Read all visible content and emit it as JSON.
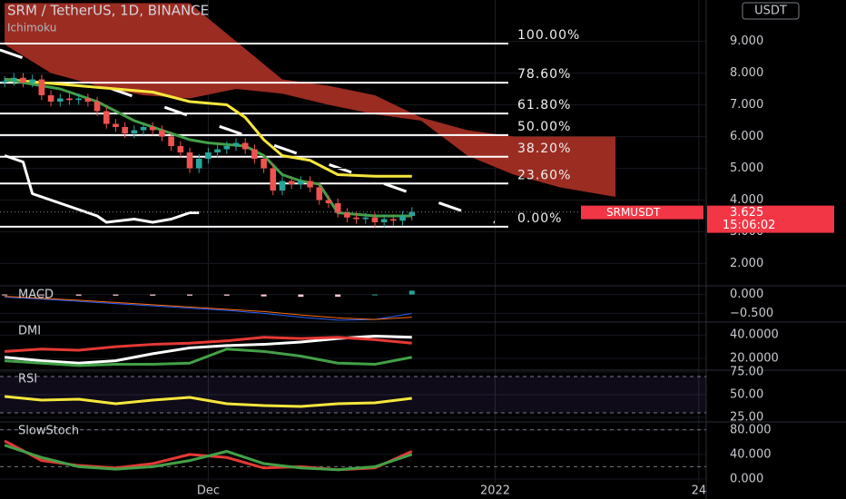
{
  "chart_data": [
    {
      "type": "candlestick",
      "title": "SRM / TetherUS, 1D, BINANCE",
      "indicator": "Ichimoku",
      "currency": "USDT",
      "symbol": "SRMUSDT",
      "countdown": "15:06:02",
      "ylim": [
        1.3,
        10.3
      ],
      "yticks": [
        {
          "value": 2,
          "label": "2.000"
        },
        {
          "value": 3,
          "label": "3.000"
        },
        {
          "value": 4,
          "label": "4.000"
        },
        {
          "value": 5,
          "label": "5.000"
        },
        {
          "value": 6,
          "label": "6.000"
        },
        {
          "value": 7,
          "label": "7.000"
        },
        {
          "value": 8,
          "label": "8.000"
        },
        {
          "value": 9,
          "label": "9.000"
        }
      ],
      "x": [
        0,
        1,
        2,
        3,
        4,
        5,
        6,
        7,
        8,
        9,
        10,
        11,
        12,
        13,
        14,
        15,
        16,
        17,
        18,
        19,
        20,
        21,
        22,
        23,
        24,
        25,
        26,
        27,
        28,
        29,
        30,
        31,
        32,
        33,
        34,
        35,
        36,
        37,
        38,
        39,
        40,
        41,
        42,
        43,
        44
      ],
      "open": [
        7.7,
        7.75,
        7.85,
        7.7,
        7.8,
        7.3,
        7.1,
        7.2,
        7.15,
        7.2,
        7.1,
        6.8,
        6.4,
        6.3,
        6.1,
        6.2,
        6.3,
        6.2,
        6.0,
        5.7,
        5.5,
        5.0,
        5.3,
        5.5,
        5.6,
        5.7,
        5.8,
        5.6,
        5.3,
        5.0,
        4.3,
        4.6,
        4.5,
        4.6,
        4.4,
        4.0,
        3.9,
        3.6,
        3.45,
        3.4,
        3.45,
        3.3,
        3.4,
        3.35,
        3.5
      ],
      "high": [
        7.9,
        8.0,
        8.0,
        7.95,
        7.95,
        7.45,
        7.35,
        7.35,
        7.35,
        7.35,
        7.25,
        6.95,
        6.55,
        6.45,
        6.35,
        6.45,
        6.45,
        6.35,
        6.15,
        5.85,
        5.65,
        5.45,
        5.65,
        5.75,
        5.85,
        5.95,
        5.95,
        5.75,
        5.45,
        5.15,
        4.75,
        4.75,
        4.75,
        4.75,
        4.55,
        4.15,
        4.05,
        3.75,
        3.6,
        3.6,
        3.6,
        3.55,
        3.55,
        3.65,
        3.775
      ],
      "low": [
        7.55,
        7.6,
        7.55,
        7.55,
        7.15,
        6.95,
        6.95,
        7.0,
        7.0,
        6.95,
        6.65,
        6.25,
        6.15,
        5.95,
        5.95,
        6.05,
        6.05,
        5.85,
        5.55,
        5.35,
        4.85,
        4.85,
        5.15,
        5.35,
        5.45,
        5.55,
        5.45,
        5.15,
        4.85,
        4.15,
        4.15,
        4.35,
        4.35,
        4.25,
        3.85,
        3.75,
        3.45,
        3.3,
        3.25,
        3.25,
        3.15,
        3.15,
        3.2,
        3.2,
        3.35
      ],
      "close": [
        7.75,
        7.85,
        7.7,
        7.8,
        7.3,
        7.1,
        7.2,
        7.15,
        7.2,
        7.1,
        6.8,
        6.4,
        6.3,
        6.1,
        6.2,
        6.3,
        6.2,
        6.0,
        5.7,
        5.5,
        5.0,
        5.3,
        5.5,
        5.6,
        5.7,
        5.8,
        5.6,
        5.3,
        5.0,
        4.3,
        4.6,
        4.5,
        4.6,
        4.4,
        4.0,
        3.9,
        3.6,
        3.45,
        3.4,
        3.45,
        3.3,
        3.4,
        3.35,
        3.5,
        3.625
      ],
      "up_color": "#26a69a",
      "down_color": "#ef5350",
      "cloud": {
        "color": "#9b2c22",
        "x": [
          0,
          5,
          10,
          15,
          20,
          25,
          30,
          35,
          40,
          45,
          50,
          55,
          60,
          66
        ],
        "upper": [
          10.2,
          10.2,
          10.2,
          10.2,
          10.2,
          9.0,
          7.8,
          7.6,
          7.3,
          6.6,
          6.2,
          6.0,
          6.0,
          6.0
        ],
        "lower": [
          8.9,
          8.0,
          7.6,
          7.3,
          7.2,
          7.5,
          7.35,
          7.0,
          6.7,
          6.5,
          5.4,
          4.8,
          4.4,
          4.1
        ]
      },
      "lines": [
        {
          "color": "#f5e63c",
          "x": [
            0,
            8,
            12,
            16,
            20,
            24,
            26,
            28,
            30,
            33,
            36,
            40,
            44
          ],
          "values": [
            7.8,
            7.6,
            7.5,
            7.4,
            7.1,
            7.0,
            6.6,
            5.9,
            5.4,
            5.25,
            4.8,
            4.75,
            4.75
          ]
        },
        {
          "color": "#43a047",
          "x": [
            0,
            6,
            10,
            14,
            18,
            20,
            22,
            26,
            28,
            30,
            32,
            34,
            36,
            40,
            44
          ],
          "values": [
            7.8,
            7.5,
            7.1,
            6.5,
            6.1,
            5.9,
            5.8,
            5.7,
            5.4,
            4.8,
            4.6,
            4.5,
            3.6,
            3.5,
            3.5
          ]
        },
        {
          "color": "#ffffff",
          "x": [
            0,
            2,
            3,
            5,
            8,
            10,
            11,
            14,
            16,
            18,
            20,
            21
          ],
          "values": [
            5.4,
            5.2,
            4.2,
            4.0,
            3.7,
            3.5,
            3.3,
            3.4,
            3.3,
            3.4,
            3.6,
            3.6
          ]
        }
      ],
      "fib": [
        {
          "value": 8.93,
          "label": "100.00%"
        },
        {
          "value": 7.695,
          "label": "78.60%"
        },
        {
          "value": 6.726,
          "label": "61.80%"
        },
        {
          "value": 6.045,
          "label": "50.00%"
        },
        {
          "value": 5.364,
          "label": "38.20%"
        },
        {
          "value": 4.52,
          "label": "23.60%"
        },
        {
          "value": 3.16,
          "label": "0.00%"
        }
      ]
    },
    {
      "type": "line",
      "title": "MACD",
      "ylim": [
        -0.73,
        0.23
      ],
      "yticks": [
        {
          "value": 0,
          "label": "0.000"
        },
        {
          "value": -0.5,
          "label": "−0.500"
        }
      ],
      "x": [
        0,
        4,
        8,
        12,
        16,
        20,
        24,
        28,
        32,
        36,
        40,
        44
      ],
      "series": [
        {
          "color": "#2962ff",
          "values": [
            -0.07,
            -0.12,
            -0.18,
            -0.24,
            -0.3,
            -0.36,
            -0.42,
            -0.5,
            -0.6,
            -0.68,
            -0.66,
            -0.5
          ]
        },
        {
          "color": "#ff6d00",
          "values": [
            -0.05,
            -0.1,
            -0.15,
            -0.21,
            -0.27,
            -0.33,
            -0.39,
            -0.45,
            -0.54,
            -0.62,
            -0.66,
            -0.6
          ]
        }
      ],
      "bars": {
        "values": [
          -0.02,
          -0.02,
          -0.03,
          -0.03,
          -0.03,
          -0.03,
          -0.03,
          -0.05,
          -0.06,
          -0.06,
          0,
          0.1
        ],
        "up_color": "#26a69a",
        "down_color": "#ffcdd2"
      }
    },
    {
      "type": "line",
      "title": "DMI",
      "ylim": [
        10,
        51
      ],
      "yticks": [
        {
          "value": 40,
          "label": "40.0000"
        },
        {
          "value": 20,
          "label": "20.0000"
        }
      ],
      "x": [
        0,
        4,
        8,
        12,
        16,
        20,
        24,
        28,
        32,
        36,
        40,
        44
      ],
      "series": [
        {
          "color": "#ffffff",
          "values": [
            21,
            18,
            16,
            18,
            24,
            29,
            31,
            32,
            34,
            37,
            39,
            38
          ]
        },
        {
          "color": "#e53935",
          "values": [
            26,
            28,
            27,
            30,
            32,
            33,
            35,
            38,
            37,
            38,
            36,
            33
          ]
        },
        {
          "color": "#43a047",
          "values": [
            18,
            16,
            14,
            15,
            15,
            16,
            28,
            26,
            22,
            16,
            15,
            21
          ]
        }
      ]
    },
    {
      "type": "line",
      "title": "RSI",
      "ylim": [
        22,
        77
      ],
      "band": [
        30,
        70
      ],
      "yticks": [
        {
          "value": 75,
          "label": "75.00"
        },
        {
          "value": 50,
          "label": "50.00"
        },
        {
          "value": 25,
          "label": "25.00"
        }
      ],
      "x": [
        0,
        4,
        8,
        12,
        16,
        20,
        24,
        28,
        32,
        36,
        40,
        44
      ],
      "series": [
        {
          "color": "#f5e63c",
          "values": [
            48,
            44,
            45,
            40,
            44,
            47,
            40,
            38,
            37,
            40,
            41,
            46
          ]
        }
      ]
    },
    {
      "type": "line",
      "title": "SlowStoch",
      "ylim": [
        -6,
        93
      ],
      "band": [
        20,
        80
      ],
      "yticks": [
        {
          "value": 80,
          "label": "80.000"
        },
        {
          "value": 40,
          "label": "40.000"
        },
        {
          "value": 0,
          "label": "0.000"
        }
      ],
      "xlim": [
        -0.5,
        75.8
      ],
      "xticks": [
        {
          "value": 22,
          "label": "Dec"
        },
        {
          "value": 53,
          "label": "2022"
        },
        {
          "value": 75,
          "label": "24"
        }
      ],
      "x": [
        0,
        4,
        8,
        12,
        16,
        20,
        24,
        28,
        32,
        36,
        40,
        44
      ],
      "series": [
        {
          "color": "#e53935",
          "values": [
            62,
            30,
            22,
            18,
            25,
            40,
            35,
            18,
            20,
            15,
            18,
            45
          ]
        },
        {
          "color": "#43a047",
          "values": [
            55,
            35,
            20,
            16,
            20,
            30,
            45,
            25,
            18,
            15,
            20,
            40
          ]
        }
      ]
    }
  ]
}
